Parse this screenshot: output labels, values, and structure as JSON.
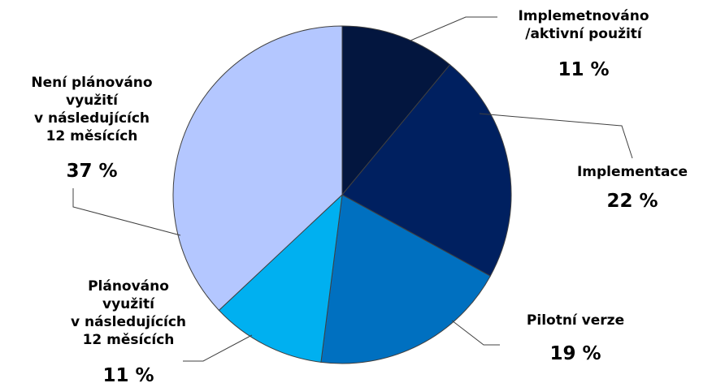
{
  "chart_data": {
    "type": "pie",
    "unit": "%",
    "categories": [
      "Implemetnováno /aktivní použití",
      "Implementace",
      "Pilotní verze",
      "Plánováno využití v následujících 12 měsících",
      "Není plánováno využití v následujících 12 měsících"
    ],
    "values": [
      11,
      22,
      19,
      11,
      37
    ],
    "colors": [
      "#03163f",
      "#002060",
      "#0070c0",
      "#00b0f0",
      "#b4c7ff"
    ],
    "value_labels": [
      "11 %",
      "22 %",
      "19 %",
      "11 %",
      "37 %"
    ],
    "label_lines": [
      [
        "Implemetnováno",
        "/aktivní použití"
      ],
      [
        "Implementace"
      ],
      [
        "Pilotní verze"
      ],
      [
        "Plánováno",
        "využití",
        "v následujících",
        "12 měsících"
      ],
      [
        "Není plánováno",
        "využití",
        "v následujících",
        "12 měsících"
      ]
    ],
    "start_angle_deg": 0,
    "direction": "clockwise",
    "legend": "none"
  }
}
